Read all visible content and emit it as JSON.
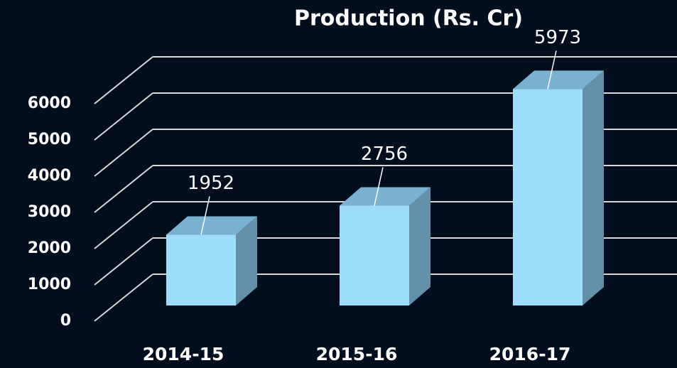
{
  "chart_data": {
    "type": "bar3d",
    "title": "Production  (Rs. Cr)",
    "categories": [
      "2014-15",
      "2015-16",
      "2016-17"
    ],
    "values": [
      1952,
      2756,
      5973
    ],
    "color": "#9edcfb",
    "ylim": [
      0,
      6000
    ],
    "yticks": [
      0,
      1000,
      2000,
      3000,
      4000,
      5000,
      6000
    ],
    "grid": true
  }
}
